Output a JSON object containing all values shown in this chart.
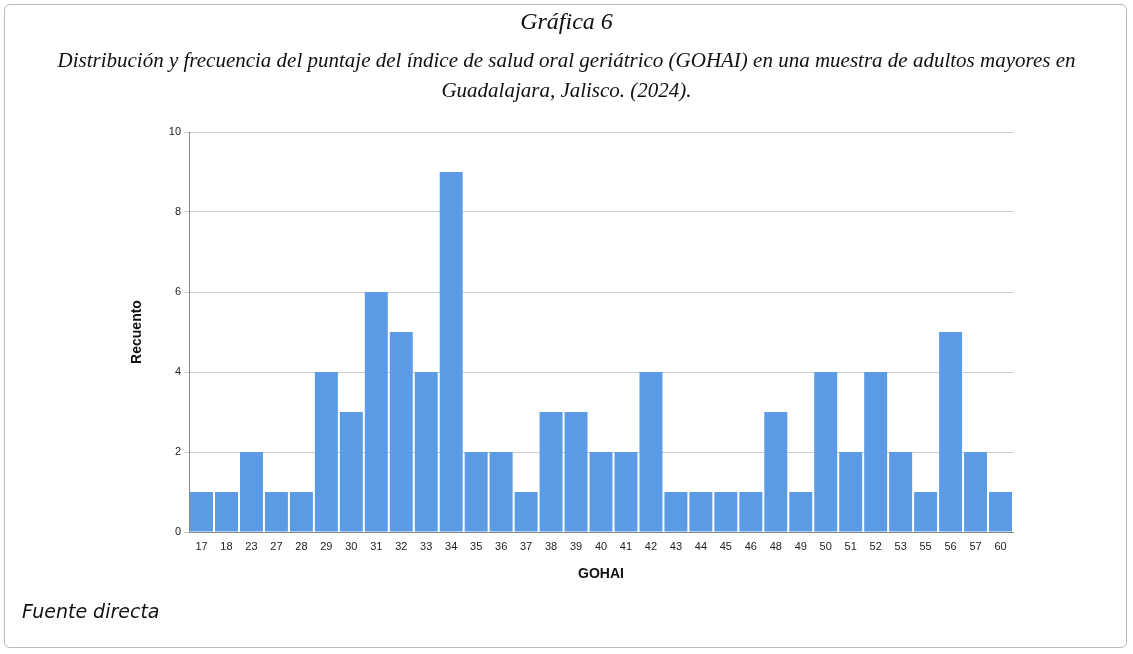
{
  "chart_data": {
    "type": "bar",
    "title": "Gráfica 6",
    "subtitle": "Distribución y frecuencia del puntaje del índice de salud oral geriátrico (GOHAI) en una muestra de adultos mayores en Guadalajara, Jalisco. (2024).",
    "xlabel": "GOHAI",
    "ylabel": "Recuento",
    "categories": [
      "17",
      "18",
      "23",
      "27",
      "28",
      "29",
      "30",
      "31",
      "32",
      "33",
      "34",
      "35",
      "36",
      "37",
      "38",
      "39",
      "40",
      "41",
      "42",
      "43",
      "44",
      "45",
      "46",
      "48",
      "49",
      "50",
      "51",
      "52",
      "53",
      "55",
      "56",
      "57",
      "60"
    ],
    "values": [
      1,
      1,
      2,
      1,
      1,
      4,
      3,
      6,
      5,
      4,
      9,
      2,
      2,
      1,
      3,
      3,
      2,
      2,
      4,
      1,
      1,
      1,
      1,
      3,
      1,
      4,
      2,
      4,
      2,
      1,
      5,
      2,
      1
    ],
    "color": "#5b9be6",
    "ylim": [
      0,
      10
    ],
    "yticks": [
      0,
      2,
      4,
      6,
      8,
      10
    ],
    "grid": "y",
    "legend": false,
    "annotations": [
      "Fuente directa"
    ]
  }
}
